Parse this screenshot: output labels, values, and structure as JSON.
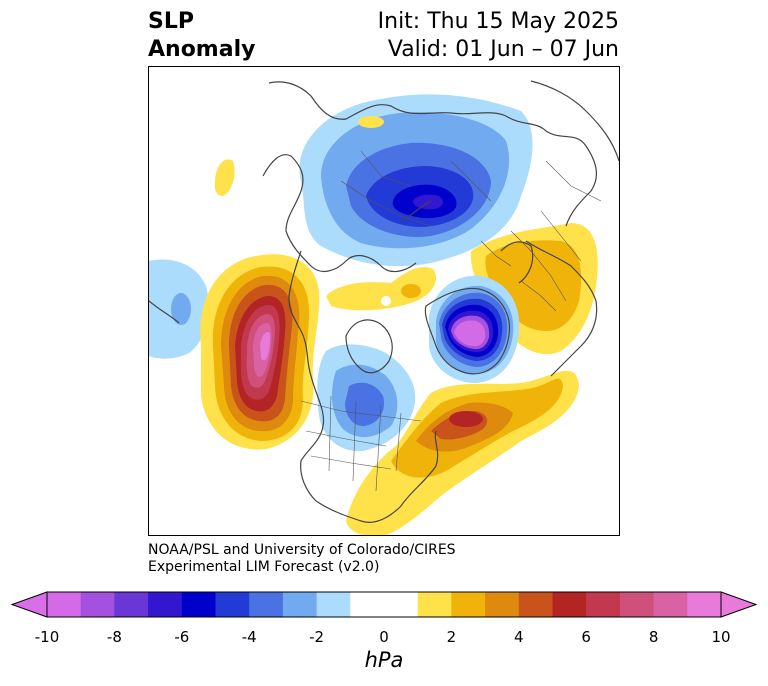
{
  "title": {
    "line1": "SLP",
    "line2": "Anomaly",
    "init": "Init: Thu 15 May 2025",
    "valid": "Valid: 01 Jun – 07 Jun"
  },
  "credit": {
    "line1": "NOAA/PSL and University of Colorado/CIRES",
    "line2": "Experimental LIM Forecast (v2.0)"
  },
  "colorbar": {
    "unit": "hPa",
    "ticks": [
      "-10",
      "-8",
      "-6",
      "-4",
      "-2",
      "0",
      "2",
      "4",
      "6",
      "8",
      "10"
    ],
    "tick_values": [
      -10,
      -8,
      -6,
      -4,
      -2,
      0,
      2,
      4,
      6,
      8,
      10
    ],
    "min": -10,
    "max": 10,
    "extend": "both",
    "colors": [
      "#d46be6",
      "#a351de",
      "#6a36d6",
      "#3316cf",
      "#0000cc",
      "#233ad6",
      "#4a72e3",
      "#72aaf0",
      "#abdcfc",
      "#ffffff",
      "#ffffff",
      "#ffe14a",
      "#f0b30a",
      "#dd8a0f",
      "#c8531b",
      "#b32424",
      "#c2384f",
      "#d0507c",
      "#d962a4",
      "#e87ad9"
    ],
    "under_color": "#d96fe8",
    "over_color": "#ea7ad9"
  },
  "map": {
    "projection": "polar stereographic (Northern Hemisphere)",
    "features": [
      "coastlines",
      "country borders",
      "state/province borders"
    ]
  }
}
